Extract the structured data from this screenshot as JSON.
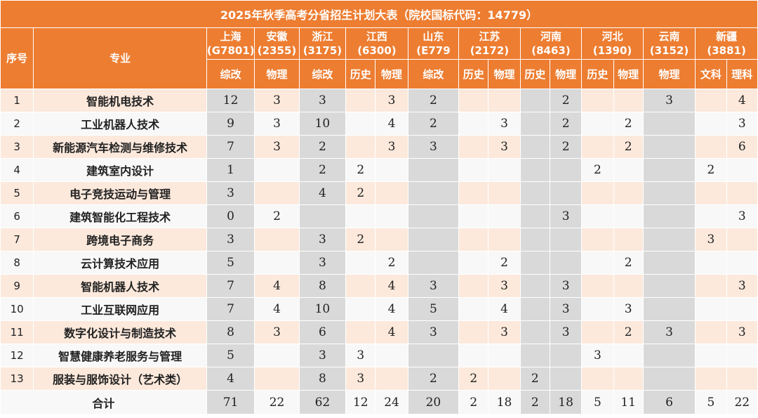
{
  "title": "2025年秋季高考分省招生计划大表（院校国标代码：14779）",
  "headers": {
    "index": "序号",
    "major": "专业"
  },
  "provinces": [
    {
      "name": "上海",
      "code": "(G7801)",
      "subjects": [
        "综改"
      ],
      "shade": true
    },
    {
      "name": "安徽",
      "code": "(2355)",
      "subjects": [
        "物理"
      ],
      "shade": false
    },
    {
      "name": "浙江",
      "code": "(3175)",
      "subjects": [
        "综改"
      ],
      "shade": true
    },
    {
      "name": "江西",
      "code": "(6300)",
      "subjects": [
        "历史",
        "物理"
      ],
      "shade": false
    },
    {
      "name": "山东",
      "code": "(E779",
      "subjects": [
        "综改"
      ],
      "shade": true
    },
    {
      "name": "江苏",
      "code": "(2172)",
      "subjects": [
        "历史",
        "物理"
      ],
      "shade": false
    },
    {
      "name": "河南",
      "code": "(8463)",
      "subjects": [
        "历史",
        "物理"
      ],
      "shade": true
    },
    {
      "name": "河北",
      "code": "(1390)",
      "subjects": [
        "历史",
        "物理"
      ],
      "shade": false
    },
    {
      "name": "云南",
      "code": "(3152)",
      "subjects": [
        "物理"
      ],
      "shade": true
    },
    {
      "name": "新疆",
      "code": "(3881)",
      "subjects": [
        "文科",
        "理科"
      ],
      "shade": false
    }
  ],
  "rows": [
    {
      "no": "1",
      "major": "智能机电技术",
      "values": [
        "12",
        "3",
        "3",
        "",
        "3",
        "2",
        "",
        "",
        "",
        "2",
        "",
        "",
        "3",
        "",
        "4"
      ]
    },
    {
      "no": "2",
      "major": "工业机器人技术",
      "values": [
        "9",
        "3",
        "10",
        "",
        "4",
        "2",
        "",
        "3",
        "",
        "2",
        "",
        "2",
        "",
        "",
        "3"
      ]
    },
    {
      "no": "3",
      "major": "新能源汽车检测与维修技术",
      "values": [
        "7",
        "3",
        "2",
        "",
        "3",
        "3",
        "",
        "3",
        "",
        "2",
        "",
        "2",
        "",
        "",
        "6"
      ]
    },
    {
      "no": "4",
      "major": "建筑室内设计",
      "values": [
        "1",
        "",
        "2",
        "2",
        "",
        "",
        "",
        "",
        "",
        "",
        "2",
        "",
        "",
        "2",
        ""
      ]
    },
    {
      "no": "5",
      "major": "电子竞技运动与管理",
      "values": [
        "3",
        "",
        "4",
        "2",
        "",
        "",
        "",
        "",
        "",
        "",
        "",
        "",
        "",
        "",
        ""
      ]
    },
    {
      "no": "6",
      "major": "建筑智能化工程技术",
      "values": [
        "0",
        "2",
        "",
        "",
        "",
        "",
        "",
        "",
        "",
        "3",
        "",
        "",
        "",
        "",
        "3"
      ]
    },
    {
      "no": "7",
      "major": "跨境电子商务",
      "values": [
        "3",
        "",
        "3",
        "2",
        "",
        "",
        "",
        "",
        "",
        "",
        "",
        "",
        "",
        "3",
        ""
      ]
    },
    {
      "no": "8",
      "major": "云计算技术应用",
      "values": [
        "5",
        "",
        "3",
        "",
        "2",
        "",
        "",
        "2",
        "",
        "",
        "",
        "2",
        "",
        "",
        ""
      ]
    },
    {
      "no": "9",
      "major": "智能机器人技术",
      "values": [
        "7",
        "4",
        "8",
        "",
        "4",
        "3",
        "",
        "3",
        "",
        "3",
        "",
        "",
        "",
        "",
        "3"
      ]
    },
    {
      "no": "10",
      "major": "工业互联网应用",
      "values": [
        "7",
        "4",
        "10",
        "",
        "4",
        "5",
        "",
        "4",
        "",
        "3",
        "",
        "3",
        "",
        "",
        ""
      ]
    },
    {
      "no": "11",
      "major": "数字化设计与制造技术",
      "values": [
        "8",
        "3",
        "6",
        "",
        "4",
        "3",
        "",
        "3",
        "",
        "3",
        "",
        "2",
        "3",
        "",
        "3"
      ]
    },
    {
      "no": "12",
      "major": "智慧健康养老服务与管理",
      "values": [
        "5",
        "",
        "3",
        "3",
        "",
        "",
        "",
        "",
        "",
        "",
        "3",
        "",
        "",
        "",
        ""
      ]
    },
    {
      "no": "13",
      "major": "服装与服饰设计（艺术类）",
      "values": [
        "4",
        "",
        "8",
        "3",
        "",
        "2",
        "2",
        "",
        "2",
        "",
        "",
        "",
        "",
        "",
        ""
      ]
    }
  ],
  "total": {
    "label": "合计",
    "values": [
      "71",
      "22",
      "62",
      "12",
      "24",
      "20",
      "2",
      "18",
      "2",
      "18",
      "5",
      "11",
      "6",
      "5",
      "22"
    ]
  }
}
